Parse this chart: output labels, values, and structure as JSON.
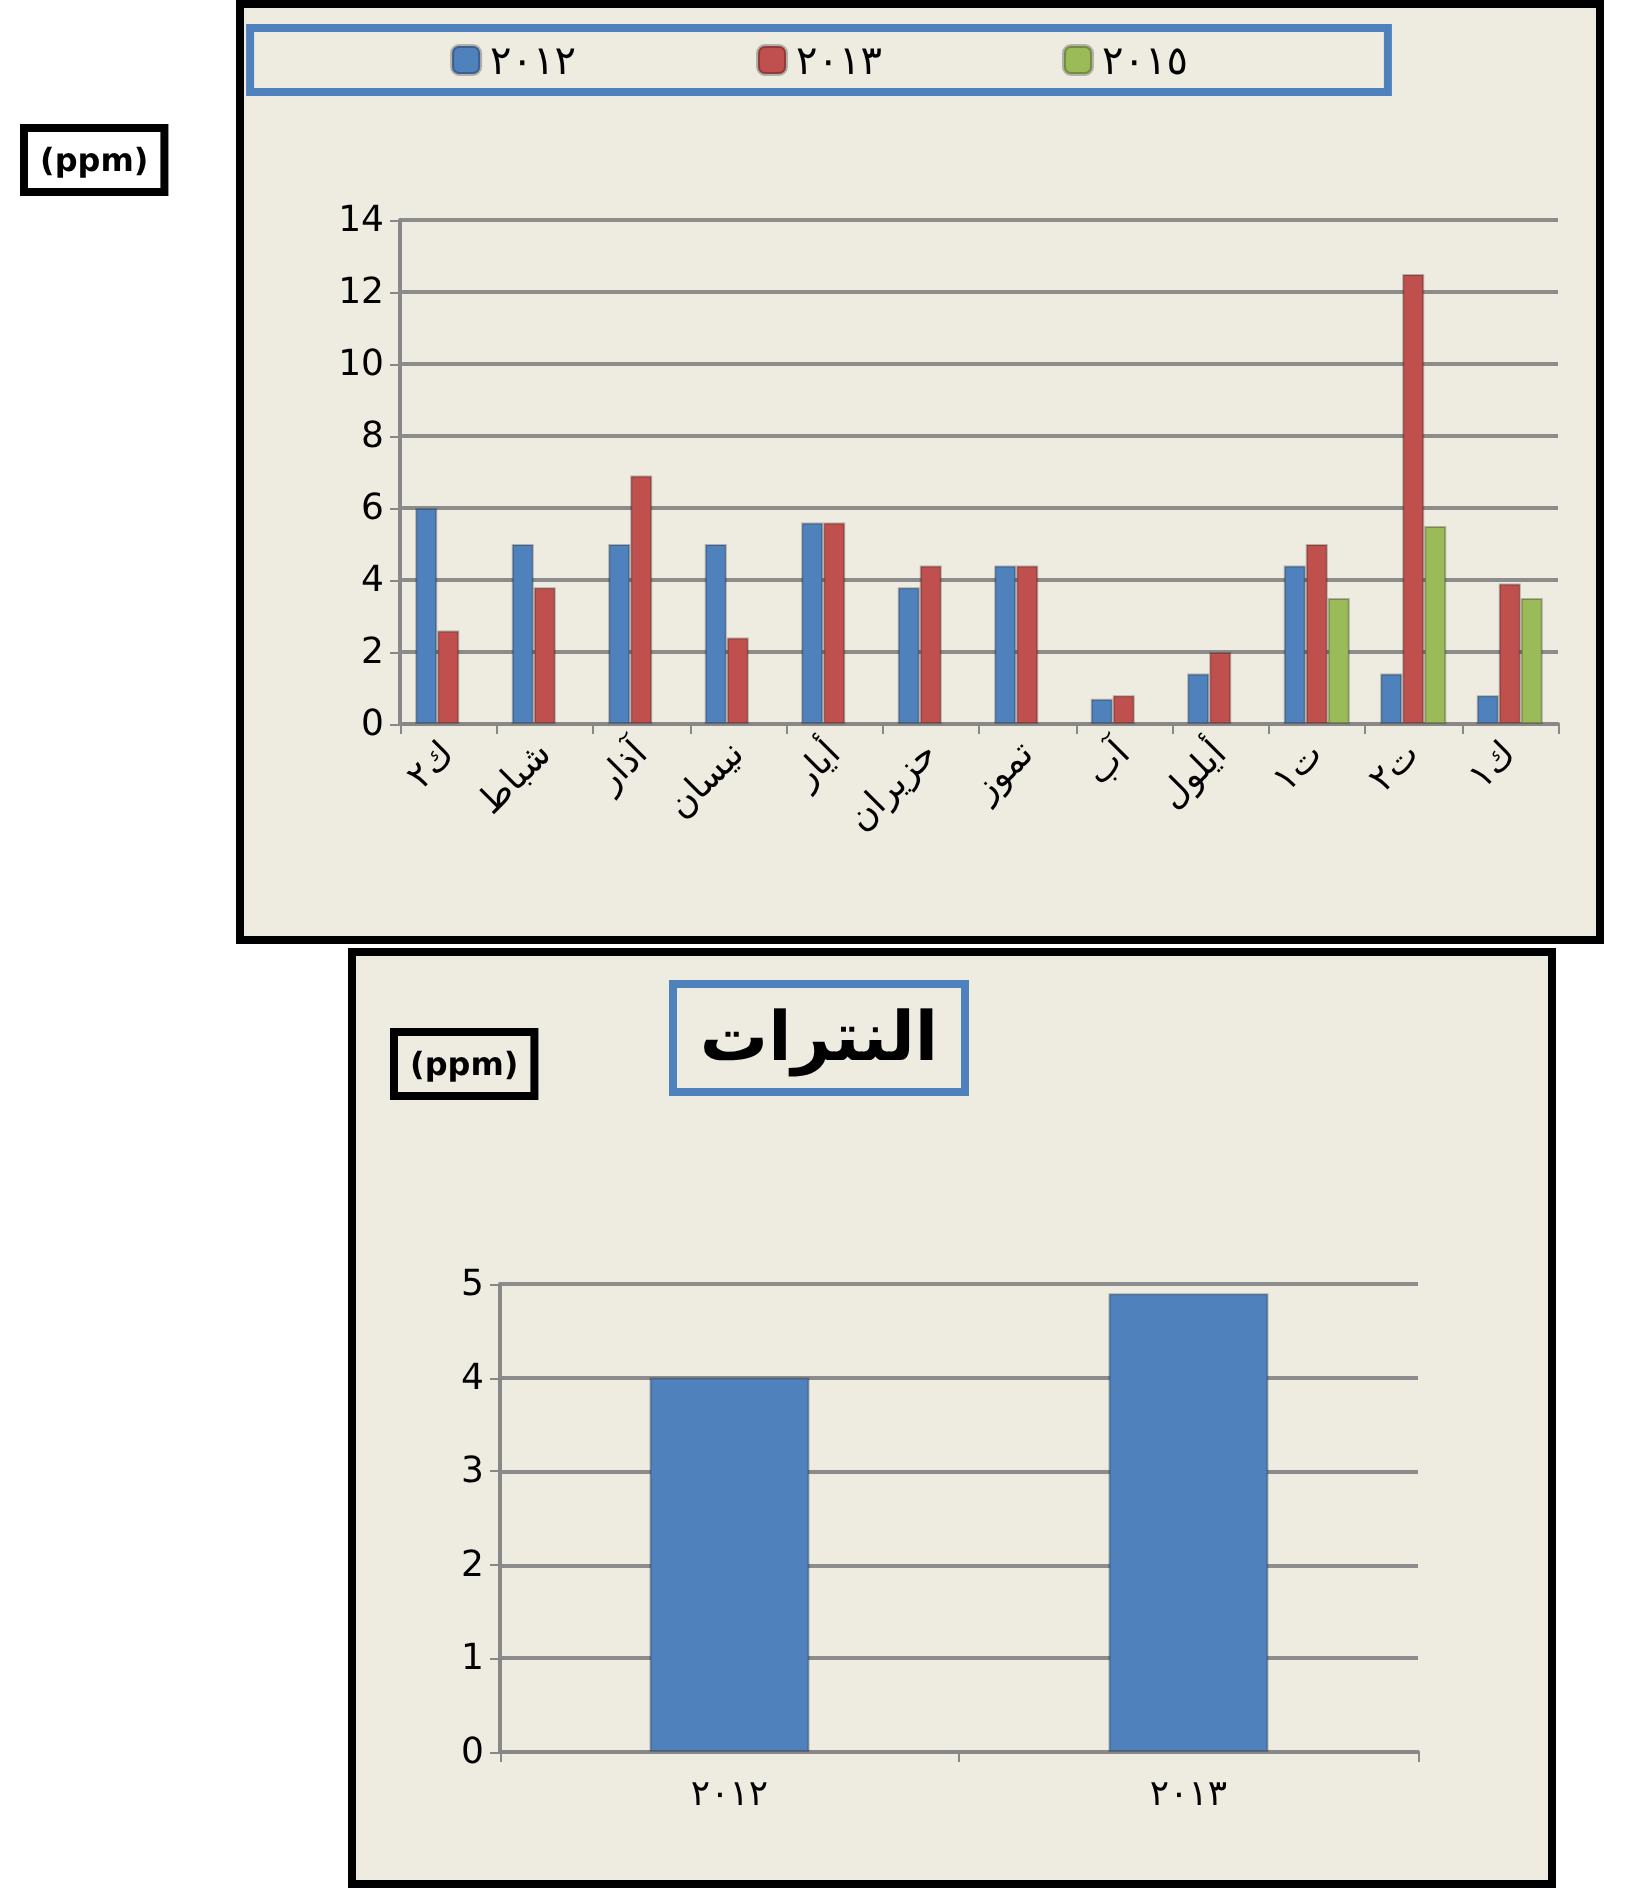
{
  "chart_data": [
    {
      "type": "bar",
      "ylabel": "(ppm)",
      "categories": [
        "ك٢",
        "شباط",
        "آذار",
        "نيسان",
        "أيار",
        "حزيران",
        "تموز",
        "آب",
        "أيلول",
        "ت١",
        "ت٢",
        "ك١"
      ],
      "series": [
        {
          "name": "٢٠١٢",
          "color": "#4f81bd",
          "values": [
            6.0,
            5.0,
            5.0,
            5.0,
            5.6,
            3.8,
            4.4,
            0.7,
            1.4,
            4.4,
            1.4,
            0.8
          ]
        },
        {
          "name": "٢٠١٣",
          "color": "#c0504d",
          "values": [
            2.6,
            3.8,
            6.9,
            2.4,
            5.6,
            4.4,
            4.4,
            0.8,
            2.0,
            5.0,
            12.5,
            3.9
          ]
        },
        {
          "name": "٢٠١٥",
          "color": "#9bbb59",
          "values": [
            null,
            null,
            null,
            null,
            null,
            null,
            null,
            null,
            null,
            3.5,
            5.5,
            3.5
          ]
        }
      ],
      "ylim": [
        0,
        14
      ],
      "yticks": [
        0,
        2,
        4,
        6,
        8,
        10,
        12,
        14
      ],
      "grid": "y",
      "legend": "top"
    },
    {
      "type": "bar",
      "title": "النترات",
      "ylabel": "(ppm)",
      "categories": [
        "٢٠١٢",
        "٢٠١٣"
      ],
      "values": [
        4.0,
        4.9
      ],
      "color": "#4f81bd",
      "ylim": [
        0,
        5
      ],
      "yticks": [
        0,
        1,
        2,
        3,
        4,
        5
      ],
      "grid": "y"
    }
  ]
}
